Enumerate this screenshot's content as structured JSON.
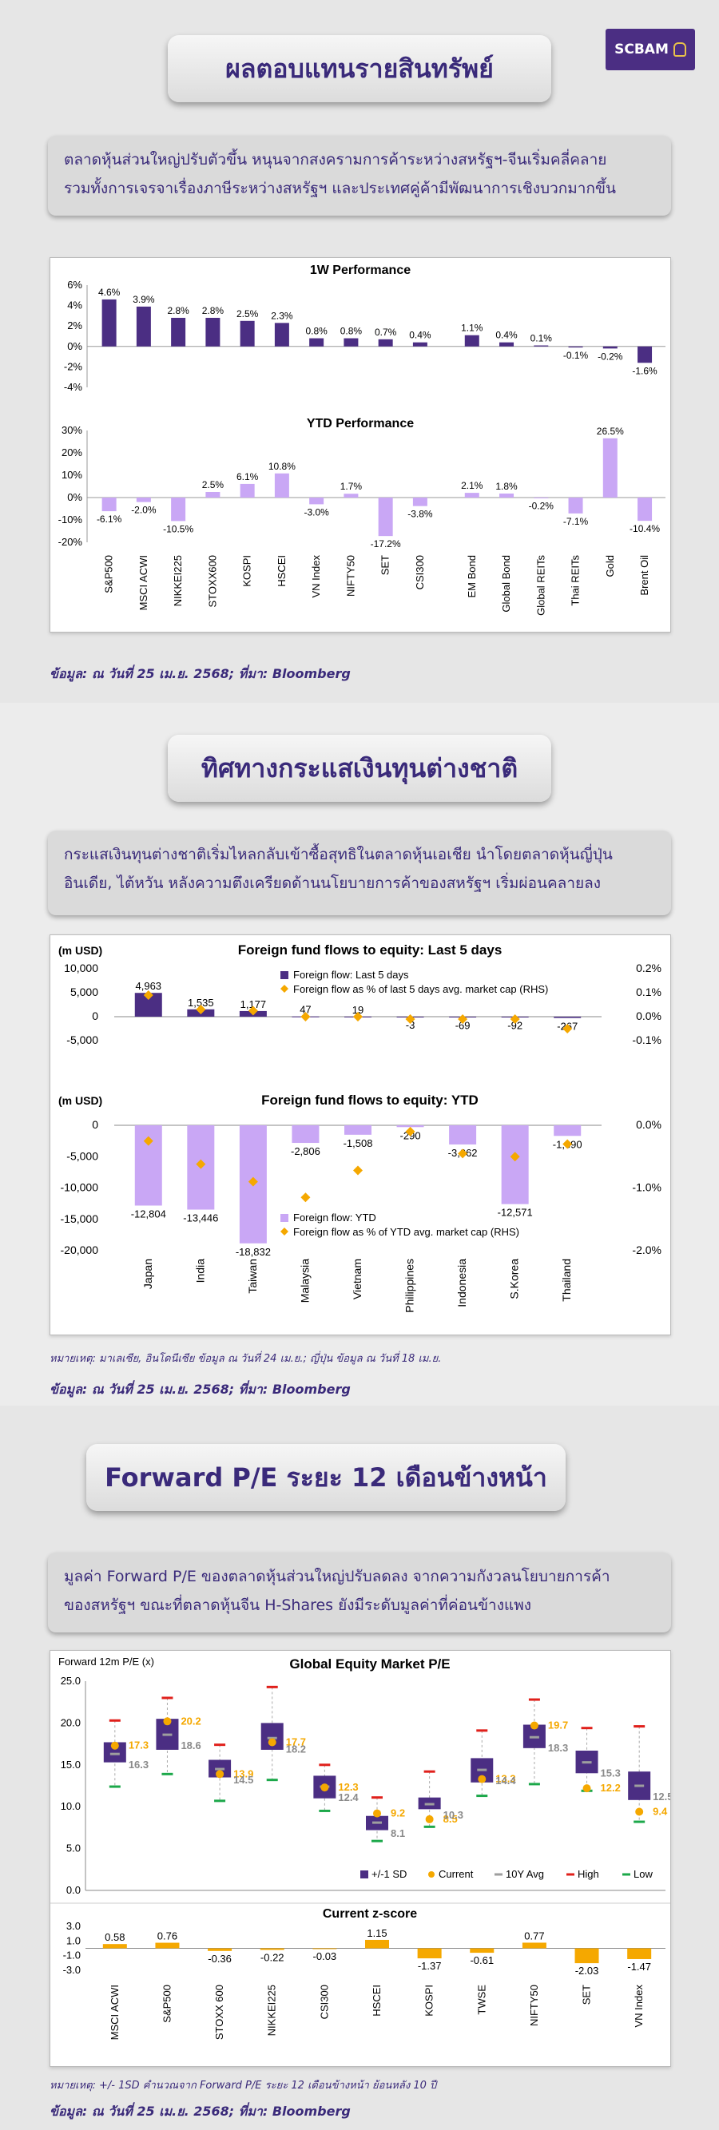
{
  "brand": {
    "logo": "SCBAM"
  },
  "section1": {
    "title": "ผลตอบแทนรายสินทรัพย์",
    "note_lines": [
      "ตลาดหุ้นส่วนใหญ่ปรับตัวขึ้น หนุนจากสงครามการค้าระหว่างสหรัฐฯ-จีนเริ่มคลี่คลาย",
      "รวมทั้งการเจรจาเรื่องภาษีระหว่างสหรัฐฯ และประเทศคู่ค้ามีพัฒนาการเชิงบวกมากขึ้น"
    ],
    "source": "ข้อมูล: ณ วันที่ 25 เม.ย. 2568; ที่มา: Bloomberg"
  },
  "section2": {
    "title": "ทิศทางกระแสเงินทุนต่างชาติ",
    "note_lines": [
      "กระแสเงินทุนต่างชาติเริ่มไหลกลับเข้าซื้อสุทธิในตลาดหุ้นเอเชีย นำโดยตลาดหุ้นญี่ปุ่น",
      "อินเดีย, ไต้หวัน หลังความตึงเครียดด้านนโยบายการค้าของสหรัฐฯ เริ่มผ่อนคลายลง"
    ],
    "footnote": "หมายเหตุ: มาเลเซีย, อินโดนีเซีย ข้อมูล ณ วันที่ 24 เม.ย.; ญี่ปุ่น ข้อมูล ณ วันที่ 18 เม.ย.",
    "source": "ข้อมูล: ณ วันที่ 25 เม.ย. 2568; ที่มา: Bloomberg"
  },
  "section3": {
    "title": "Forward P/E ระยะ 12 เดือนข้างหน้า",
    "note_lines": [
      "มูลค่า Forward P/E ของตลาดหุ้นส่วนใหญ่ปรับลดลง จากความกังวลนโยบายการค้า",
      "ของสหรัฐฯ ขณะที่ตลาดหุ้นจีน H-Shares ยังมีระดับมูลค่าที่ค่อนข้างแพง"
    ],
    "footnote": "หมายเหตุ: +/- 1SD คำนวณจาก Forward P/E ระยะ 12 เดือนข้างหน้า ย้อนหลัง 10 ปี",
    "source": "ข้อมูล: ณ วันที่ 25 เม.ย. 2568; ที่มา: Bloomberg"
  },
  "chart_data": [
    {
      "type": "bar",
      "title": "1W Performance",
      "categories": [
        "S&P500",
        "MSCI ACWI",
        "NIKKEI225",
        "STOXX600",
        "KOSPI",
        "HSCEI",
        "VN Index",
        "NIFTY50",
        "SET",
        "CSI300",
        "EM Bond",
        "Global Bond",
        "Global REITs",
        "Thai REITs",
        "Gold",
        "Brent Oil"
      ],
      "values": [
        4.6,
        3.9,
        2.8,
        2.8,
        2.5,
        2.3,
        0.8,
        0.8,
        0.7,
        0.4,
        1.1,
        0.4,
        0.1,
        -0.1,
        -0.2,
        -1.6
      ],
      "colors": [
        "#4b2e83",
        "#4b2e83",
        "#4b2e83",
        "#4b2e83",
        "#4b2e83",
        "#4b2e83",
        "#4b2e83",
        "#4b2e83",
        "#4b2e83",
        "#4b2e83",
        "#4b2e83",
        "#4b2e83",
        "#4b2e83",
        "#4b2e83",
        "#4b2e83",
        "#4b2e83"
      ],
      "ylim": [
        -4,
        6
      ],
      "ticks": [
        "6%",
        "4%",
        "2%",
        "0%",
        "-2%",
        "-4%"
      ]
    },
    {
      "type": "bar",
      "title": "YTD Performance",
      "categories": [
        "S&P500",
        "MSCI ACWI",
        "NIKKEI225",
        "STOXX600",
        "KOSPI",
        "HSCEI",
        "VN Index",
        "NIFTY50",
        "SET",
        "CSI300",
        "EM Bond",
        "Global Bond",
        "Global REITs",
        "Thai REITs",
        "Gold",
        "Brent Oil"
      ],
      "values": [
        -6.1,
        -2.0,
        -10.5,
        2.5,
        6.1,
        10.8,
        -3.0,
        1.7,
        -17.2,
        -3.8,
        2.1,
        1.8,
        -0.2,
        -7.1,
        26.5,
        -10.4
      ],
      "color": "#c9a7f5",
      "ylim": [
        -20,
        30
      ],
      "ticks": [
        "30%",
        "20%",
        "10%",
        "0%",
        "-10%",
        "-20%"
      ]
    },
    {
      "type": "bar",
      "title": "Foreign fund flows to equity: Last 5 days",
      "ylabel": "(m USD)",
      "categories": [
        "Japan",
        "India",
        "Taiwan",
        "Malaysia",
        "Vietnam",
        "Philippines",
        "Indonesia",
        "S.Korea",
        "Thailand"
      ],
      "series": [
        {
          "name": "Foreign flow: Last 5 days",
          "values": [
            4963,
            1535,
            1177,
            47,
            19,
            -3,
            -69,
            -92,
            -267
          ],
          "labels": [
            "4,963",
            "1,535",
            "1,177",
            "47",
            "19",
            "-3",
            "-69",
            "-92",
            "-267"
          ],
          "color": "#4b2e83"
        },
        {
          "name": "Foreign flow as % of last 5 days avg. market cap (RHS)",
          "values": [
            0.09,
            0.03,
            0.025,
            0.0,
            0.0,
            -0.01,
            -0.01,
            -0.01,
            -0.05
          ],
          "color": "#f5a800"
        }
      ],
      "ylim": [
        -5000,
        10000
      ],
      "ticks": [
        "10,000",
        "5,000",
        "0",
        "-5,000"
      ],
      "y2lim": [
        -0.1,
        0.2
      ],
      "ticks2": [
        "0.2%",
        "0.1%",
        "0.0%",
        "-0.1%"
      ]
    },
    {
      "type": "bar",
      "title": "Foreign fund flows to equity: YTD",
      "ylabel": "(m USD)",
      "categories": [
        "Japan",
        "India",
        "Taiwan",
        "Malaysia",
        "Vietnam",
        "Philippines",
        "Indonesia",
        "S.Korea",
        "Thailand"
      ],
      "series": [
        {
          "name": "Foreign flow: YTD",
          "values": [
            -12804,
            -13446,
            -18832,
            -2806,
            -1508,
            -290,
            -3062,
            -12571,
            -1690
          ],
          "labels": [
            "-12,804",
            "-13,446",
            "-18,832",
            "-2,806",
            "-1,508",
            "-290",
            "-3,062",
            "-12,571",
            "-1,690"
          ],
          "color": "#c9a7f5"
        },
        {
          "name": "Foreign flow as % of YTD avg. market cap (RHS)",
          "values": [
            -0.25,
            -0.62,
            -0.9,
            -1.15,
            -0.72,
            -0.1,
            -0.45,
            -0.5,
            -0.3
          ],
          "color": "#f5a800"
        }
      ],
      "ylim": [
        -20000,
        0
      ],
      "ticks": [
        "0",
        "-5,000",
        "-10,000",
        "-15,000",
        "-20,000"
      ],
      "y2lim": [
        -2.0,
        0.0
      ],
      "ticks2": [
        "0.0%",
        "-1.0%",
        "-2.0%"
      ]
    },
    {
      "type": "box",
      "title": "Global Equity Market P/E",
      "ylabel": "Forward 12m P/E (x)",
      "categories": [
        "MSCI ACWI",
        "S&P500",
        "STOXX 600",
        "NIKKEI225",
        "CSI300",
        "HSCEI",
        "KOSPI",
        "TWSE",
        "NIFTY50",
        "SET",
        "VN Index"
      ],
      "sd_low": [
        15.3,
        16.8,
        13.5,
        16.8,
        11.0,
        7.2,
        9.7,
        12.9,
        17.0,
        14.0,
        10.8
      ],
      "sd_high": [
        17.7,
        20.5,
        15.6,
        20.0,
        13.7,
        8.9,
        11.1,
        15.8,
        19.8,
        16.7,
        14.2
      ],
      "current": [
        17.3,
        20.2,
        13.9,
        17.7,
        12.3,
        9.2,
        8.5,
        13.3,
        19.7,
        12.2,
        9.4
      ],
      "current_labels": [
        "17.3",
        "20.2",
        "13.9",
        "17.7",
        "12.3",
        "9.2",
        "8.5",
        "13.3",
        "19.7",
        "12.2",
        "9.4"
      ],
      "avg10y": [
        16.3,
        18.6,
        14.5,
        18.2,
        12.4,
        8.1,
        10.3,
        14.4,
        18.3,
        15.3,
        12.5
      ],
      "avg_labels": [
        "16.3",
        "18.6",
        "14.5",
        "18.2",
        "12.4",
        "8.1",
        "10.3",
        "14.4",
        "18.3",
        "15.3",
        "12.5"
      ],
      "high": [
        20.3,
        23.0,
        17.4,
        24.3,
        15.0,
        11.1,
        14.2,
        19.1,
        22.8,
        19.4,
        19.6
      ],
      "low": [
        12.4,
        13.9,
        10.7,
        13.2,
        9.5,
        5.9,
        7.6,
        11.3,
        12.7,
        11.9,
        8.2
      ],
      "ylim": [
        0,
        25
      ],
      "ticks": [
        "25.0",
        "20.0",
        "15.0",
        "10.0",
        "5.0",
        "0.0"
      ],
      "legend": [
        "+/-1 SD",
        "Current",
        "10Y Avg",
        "High",
        "Low"
      ],
      "colors": {
        "box": "#4b2e83",
        "current": "#f5a800",
        "avg": "#9e9e9e",
        "high": "#e0201b",
        "low": "#1ca84a"
      }
    },
    {
      "type": "bar",
      "title": "Current z-score",
      "categories": [
        "MSCI ACWI",
        "S&P500",
        "STOXX 600",
        "NIKKEI225",
        "CSI300",
        "HSCEI",
        "KOSPI",
        "TWSE",
        "NIFTY50",
        "SET",
        "VN Index"
      ],
      "values": [
        0.58,
        0.76,
        -0.36,
        -0.22,
        -0.03,
        1.15,
        -1.37,
        -0.61,
        0.77,
        -2.03,
        -1.47
      ],
      "labels": [
        "0.58",
        "0.76",
        "-0.36",
        "-0.22",
        "-0.03",
        "1.15",
        "-1.37",
        "-0.61",
        "0.77",
        "-2.03",
        "-1.47"
      ],
      "color": "#f5a800",
      "ylim": [
        -3,
        3
      ],
      "ticks": [
        "3.0",
        "1.0",
        "-1.0",
        "-3.0"
      ]
    }
  ]
}
